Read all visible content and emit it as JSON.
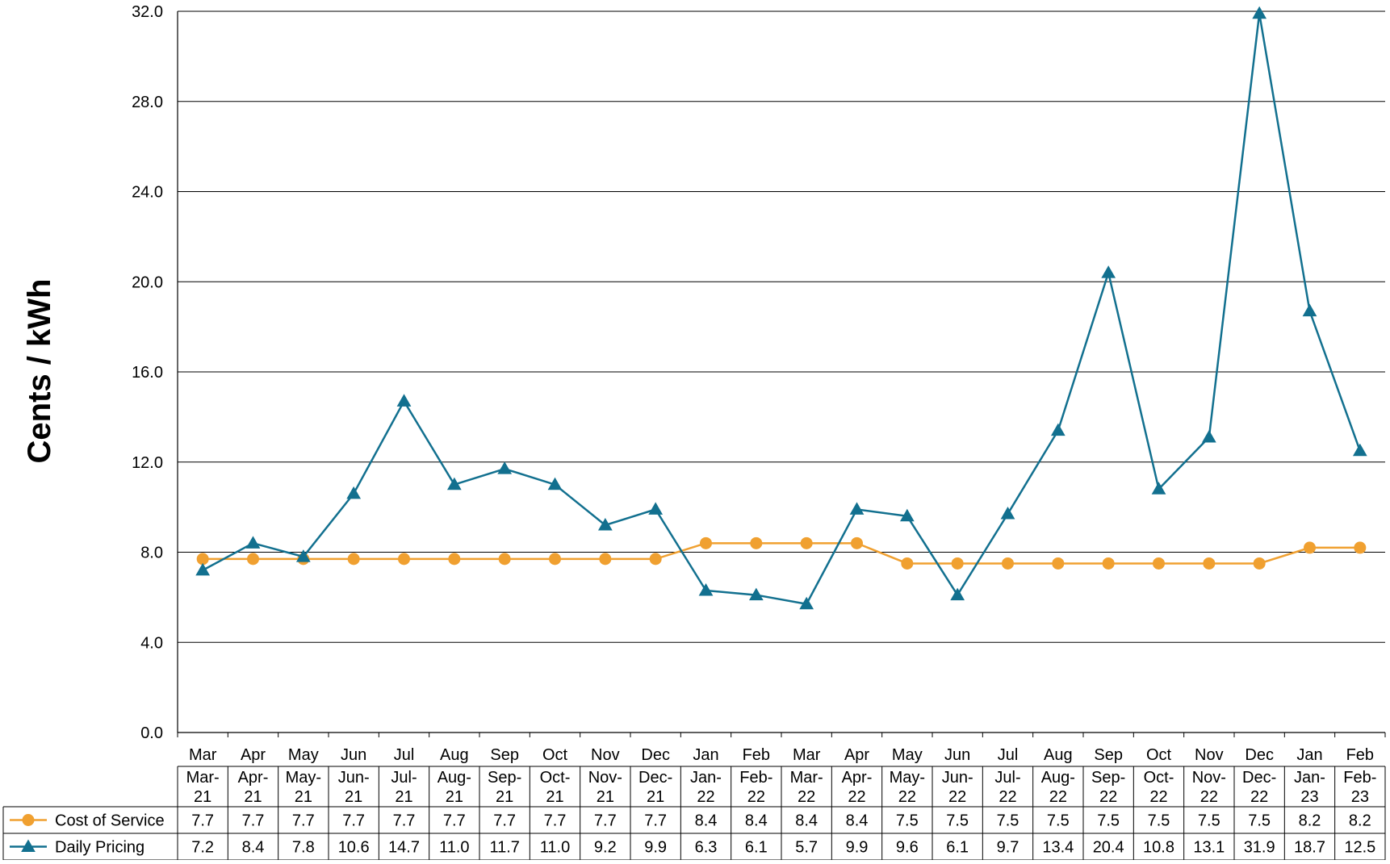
{
  "chart_data": {
    "type": "line",
    "title": "",
    "xlabel": "",
    "ylabel": "Cents / kWh",
    "ylim": [
      0,
      32
    ],
    "yticks": [
      "0.0",
      "4.0",
      "8.0",
      "12.0",
      "16.0",
      "20.0",
      "24.0",
      "28.0",
      "32.0"
    ],
    "grid": true,
    "legend": "data-table-left",
    "categories": [
      "Mar",
      "Apr",
      "May",
      "Jun",
      "Jul",
      "Aug",
      "Sep",
      "Oct",
      "Nov",
      "Dec",
      "Jan",
      "Feb",
      "Mar",
      "Apr",
      "May",
      "Jun",
      "Jul",
      "Aug",
      "Sep",
      "Oct",
      "Nov",
      "Dec",
      "Jan",
      "Feb"
    ],
    "periods": [
      [
        "Mar-",
        "21"
      ],
      [
        "Apr-",
        "21"
      ],
      [
        "May-",
        "21"
      ],
      [
        "Jun-",
        "21"
      ],
      [
        "Jul-",
        "21"
      ],
      [
        "Aug-",
        "21"
      ],
      [
        "Sep-",
        "21"
      ],
      [
        "Oct-",
        "21"
      ],
      [
        "Nov-",
        "21"
      ],
      [
        "Dec-",
        "21"
      ],
      [
        "Jan-",
        "22"
      ],
      [
        "Feb-",
        "22"
      ],
      [
        "Mar-",
        "22"
      ],
      [
        "Apr-",
        "22"
      ],
      [
        "May-",
        "22"
      ],
      [
        "Jun-",
        "22"
      ],
      [
        "Jul-",
        "22"
      ],
      [
        "Aug-",
        "22"
      ],
      [
        "Sep-",
        "22"
      ],
      [
        "Oct-",
        "22"
      ],
      [
        "Nov-",
        "22"
      ],
      [
        "Dec-",
        "22"
      ],
      [
        "Jan-",
        "23"
      ],
      [
        "Feb-",
        "23"
      ]
    ],
    "series": [
      {
        "name": "Cost of Service",
        "color": "#F0A030",
        "marker": "circle",
        "values": [
          7.7,
          7.7,
          7.7,
          7.7,
          7.7,
          7.7,
          7.7,
          7.7,
          7.7,
          7.7,
          8.4,
          8.4,
          8.4,
          8.4,
          7.5,
          7.5,
          7.5,
          7.5,
          7.5,
          7.5,
          7.5,
          7.5,
          8.2,
          8.2
        ],
        "labels": [
          "7.7",
          "7.7",
          "7.7",
          "7.7",
          "7.7",
          "7.7",
          "7.7",
          "7.7",
          "7.7",
          "7.7",
          "8.4",
          "8.4",
          "8.4",
          "8.4",
          "7.5",
          "7.5",
          "7.5",
          "7.5",
          "7.5",
          "7.5",
          "7.5",
          "7.5",
          "8.2",
          "8.2"
        ]
      },
      {
        "name": "Daily Pricing",
        "color": "#12708F",
        "marker": "triangle",
        "values": [
          7.2,
          8.4,
          7.8,
          10.6,
          14.7,
          11.0,
          11.7,
          11.0,
          9.2,
          9.9,
          6.3,
          6.1,
          5.7,
          9.9,
          9.6,
          6.1,
          9.7,
          13.4,
          20.4,
          10.8,
          13.1,
          31.9,
          18.7,
          12.5
        ],
        "labels": [
          "7.2",
          "8.4",
          "7.8",
          "10.6",
          "14.7",
          "11.0",
          "11.7",
          "11.0",
          "9.2",
          "9.9",
          "6.3",
          "6.1",
          "5.7",
          "9.9",
          "9.6",
          "6.1",
          "9.7",
          "13.4",
          "20.4",
          "10.8",
          "13.1",
          "31.9",
          "18.7",
          "12.5"
        ]
      }
    ]
  }
}
